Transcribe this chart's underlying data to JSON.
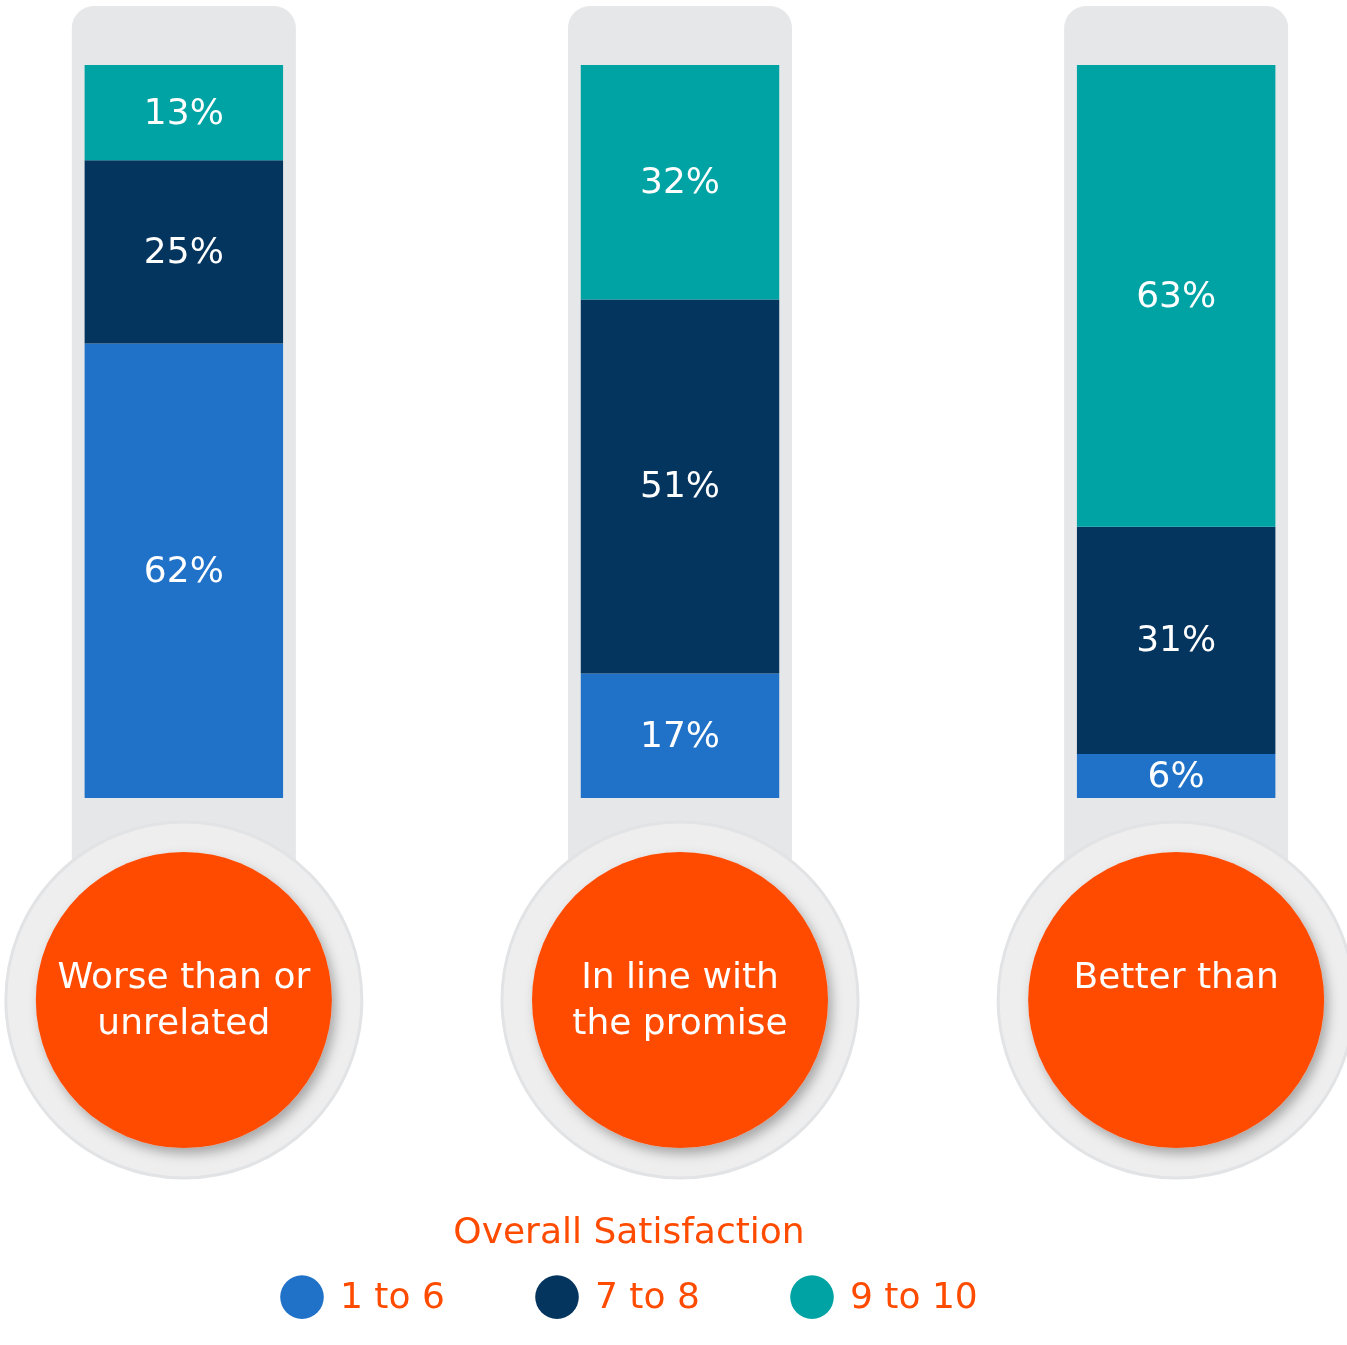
{
  "chart_data": {
    "type": "bar",
    "stacked": true,
    "categories": [
      "Worse than or unrelated",
      "In line with the promise",
      "Better than"
    ],
    "series": [
      {
        "name": "1 to 6",
        "color": "#2072c8",
        "values": [
          62,
          17,
          6
        ],
        "value_labels": [
          "62%",
          "17%",
          "6%"
        ]
      },
      {
        "name": "7 to 8",
        "color": "#04355f",
        "values": [
          25,
          51,
          31
        ],
        "value_labels": [
          "25%",
          "51%",
          "31%"
        ]
      },
      {
        "name": "9 to 10",
        "color": "#00a3a3",
        "values": [
          13,
          32,
          63
        ],
        "value_labels": [
          "13%",
          "32%",
          "63%"
        ]
      }
    ],
    "legend": "bottom",
    "legend_title": "Overall Satisfaction",
    "grid": false
  }
}
